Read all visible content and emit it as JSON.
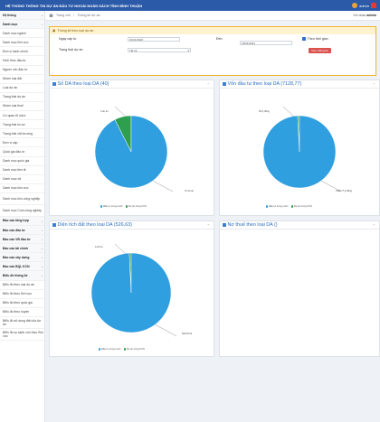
{
  "app": {
    "title": "HỆ THỐNG THÔNG TIN DỰ ÁN ĐẦU TƯ NGOÀI NGÂN SÁCH TỈNH BÌNH THUẬN",
    "user": "admin"
  },
  "sidebar": {
    "items": [
      {
        "label": "Hệ thống",
        "hdr": true
      },
      {
        "label": "Danh mục",
        "hdr": true
      },
      {
        "label": "Danh mục ngành"
      },
      {
        "label": "Danh mục lĩnh vực"
      },
      {
        "label": "Đơn vị hành chính"
      },
      {
        "label": "Hình thức đầu tư"
      },
      {
        "label": "Nguồn vốn đầu tư"
      },
      {
        "label": "Nhóm loại đất"
      },
      {
        "label": "Loại dự án"
      },
      {
        "label": "Trạng thái dự án"
      },
      {
        "label": "Nhóm loại thuế"
      },
      {
        "label": "Cơ quan tổ chức"
      },
      {
        "label": "Trạng thái hồ sơ"
      },
      {
        "label": "Trạng thái chủ trương"
      },
      {
        "label": "Đơn vị cấp"
      },
      {
        "label": "Quốc gia đầu tư"
      },
      {
        "label": "Danh mục quốc gia"
      },
      {
        "label": "Danh mục tiền tệ"
      },
      {
        "label": "Danh mục xã"
      },
      {
        "label": "Danh mục khu vực"
      },
      {
        "label": "Danh mục khu công nghiệp",
        "tall": true
      },
      {
        "label": "Danh mục Cụm công nghiệp",
        "tall": true
      },
      {
        "label": "Báo cáo tổng hợp",
        "hdr": true
      },
      {
        "label": "Báo cáo đầu tư",
        "hdr": true
      },
      {
        "label": "Báo cáo VB đầu tư",
        "hdr": true
      },
      {
        "label": "Báo cáo tài chính",
        "hdr": true
      },
      {
        "label": "Báo cáo xây dựng",
        "hdr": true
      },
      {
        "label": "Báo cáo BQL KCN",
        "hdr": true
      },
      {
        "label": "Biểu đồ thống kê",
        "hdr": true
      },
      {
        "label": "Biểu đồ theo loại dự án"
      },
      {
        "label": "Biểu đồ theo lĩnh vực"
      },
      {
        "label": "Biểu đồ theo quốc gia"
      },
      {
        "label": "Biểu đồ theo huyện"
      },
      {
        "label": "Biểu đồ sử dụng đất của dự án",
        "tall": true
      },
      {
        "label": "Biểu đồ so sánh vốn theo lĩnh vực",
        "tall": true
      }
    ]
  },
  "breadcrumb": {
    "home": "Trang chủ",
    "current": "Thống kê dự án",
    "greeting": "Xin chào",
    "user": "admin"
  },
  "filter": {
    "title": "Thống kê theo loại dự án",
    "date_from_label": "Ngày cấp từ",
    "date_from_value": "01/01/2020",
    "date_to_label": "Đến",
    "date_to_value": "18/01/2021",
    "status_label": "Trạng thái dự án",
    "status_value": "Tất cả",
    "checkbox_label": "Theo thời gian",
    "button_label": "Xem thống kê"
  },
  "chart_data": [
    {
      "type": "pie",
      "title": "Số DA theo loại DA (40)",
      "labels": [
        "Đầu tư trong nước",
        "Dự án trong KCN"
      ],
      "values": [
        37,
        3
      ],
      "slice_labels": [
        "37 dự án",
        "3 dự án"
      ],
      "colors": [
        "#2f9fe0",
        "#2e9e4f"
      ],
      "legend": "bottom"
    },
    {
      "type": "pie",
      "title": "Vốn đầu tư theo loại DA (7128,77)",
      "labels": [
        "Đầu tư trong nước",
        "Dự án trong KCN"
      ],
      "values": [
        7069.77,
        59
      ],
      "slice_labels": [
        "7069,77 tỷ đồng",
        "59 tỷ đồng"
      ],
      "colors": [
        "#2f9fe0",
        "#2e9e4f"
      ],
      "legend": "bottom"
    },
    {
      "type": "pie",
      "title": "Diện tích đất theo loại DA (526,63)",
      "labels": [
        "Đầu tư trong nước",
        "Dự án trong KCN"
      ],
      "values": [
        522.53,
        4.1
      ],
      "slice_labels": [
        "522,53 ha",
        "4,10 ha"
      ],
      "colors": [
        "#2f9fe0",
        "#2e9e4f"
      ],
      "legend": "bottom"
    },
    {
      "type": "pie",
      "title": "Nợ thuế theo loại DA ()",
      "labels": [],
      "values": []
    }
  ]
}
